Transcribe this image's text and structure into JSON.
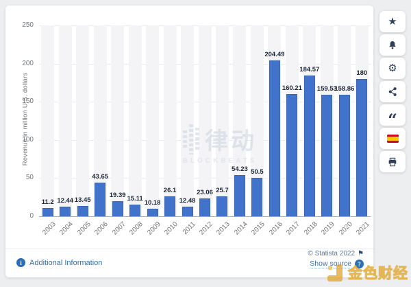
{
  "chart_data": {
    "type": "bar",
    "title": "",
    "xlabel": "",
    "ylabel": "Revenue in million U.S. dollars",
    "ylim": [
      0,
      250
    ],
    "yticks": [
      0,
      50,
      100,
      150,
      200,
      250
    ],
    "grid": true,
    "legend": false,
    "bar_color": "#4173cb",
    "categories": [
      "2003",
      "2004",
      "2005",
      "2006",
      "2007",
      "2008",
      "2009",
      "2010",
      "2011",
      "2012",
      "2013",
      "2014",
      "2015",
      "2016",
      "2017",
      "2018",
      "2019",
      "2020",
      "2021"
    ],
    "values": [
      11.2,
      12.44,
      13.45,
      43.65,
      19.39,
      15.11,
      10.18,
      26.1,
      12.48,
      23.06,
      25.7,
      54.23,
      50.5,
      204.49,
      160.21,
      184.57,
      159.53,
      158.86,
      180
    ],
    "labels": [
      "11.2",
      "12.44",
      "13.45",
      "43.65",
      "19.39",
      "15.11",
      "10.18",
      "26.1",
      "12.48",
      "23.06",
      "25.7",
      "54.23",
      "50.5",
      "204.49",
      "160.21",
      "184.57",
      "159.53",
      "158.86",
      "180"
    ]
  },
  "watermarks": {
    "center_text": "律动",
    "center_subtext": "BLOCKBEATS",
    "corner_text": "金色财经"
  },
  "sidebar": {
    "icons": {
      "star": "★",
      "gear": "⚙",
      "quote": "“"
    }
  },
  "footer": {
    "additional_info_label": "Additional Information",
    "info_glyph": "i",
    "copyright": "© Statista 2022",
    "flag_glyph": "⚑",
    "show_source_label": "Show source",
    "question_glyph": "?"
  }
}
